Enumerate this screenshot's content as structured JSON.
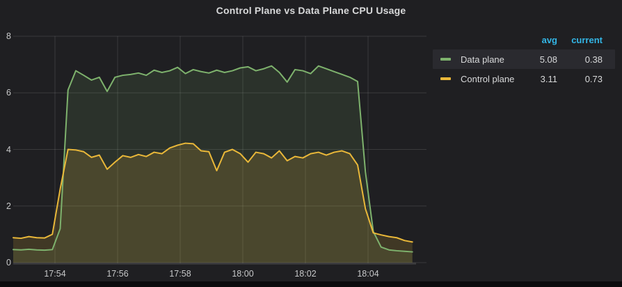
{
  "panel": {
    "title": "Control Plane vs Data Plane CPU Usage"
  },
  "chart_data": {
    "type": "area",
    "title": "Control Plane vs Data Plane CPU Usage",
    "xlabel": "",
    "ylabel": "",
    "ylim": [
      0,
      8
    ],
    "y_ticks": [
      "0",
      "2",
      "4",
      "6",
      "8"
    ],
    "x_ticks": [
      "17:54",
      "17:56",
      "17:58",
      "18:00",
      "18:02",
      "18:04"
    ],
    "x_start": "17:52:40",
    "x_end": "18:05:30",
    "interval_seconds": 15,
    "grid": true,
    "legend_position": "right-table",
    "series": [
      {
        "name": "Data plane",
        "color": "#7eb26d",
        "fill_opacity": 0.13,
        "avg": 5.08,
        "current": 0.38,
        "values": [
          0.46,
          0.45,
          0.47,
          0.45,
          0.44,
          0.46,
          1.2,
          6.1,
          6.78,
          6.62,
          6.45,
          6.55,
          6.05,
          6.55,
          6.62,
          6.65,
          6.7,
          6.62,
          6.8,
          6.72,
          6.78,
          6.9,
          6.68,
          6.82,
          6.75,
          6.7,
          6.8,
          6.72,
          6.78,
          6.88,
          6.92,
          6.78,
          6.85,
          6.95,
          6.72,
          6.38,
          6.82,
          6.78,
          6.68,
          6.95,
          6.85,
          6.75,
          6.65,
          6.55,
          6.4,
          3.2,
          1.1,
          0.55,
          0.45,
          0.42,
          0.4,
          0.38
        ]
      },
      {
        "name": "Control plane",
        "color": "#eab839",
        "fill_opacity": 0.16,
        "avg": 3.11,
        "current": 0.73,
        "values": [
          0.88,
          0.86,
          0.92,
          0.88,
          0.87,
          1.0,
          2.6,
          4.0,
          3.98,
          3.92,
          3.72,
          3.8,
          3.3,
          3.55,
          3.78,
          3.72,
          3.82,
          3.75,
          3.9,
          3.85,
          4.05,
          4.15,
          4.22,
          4.2,
          3.95,
          3.92,
          3.25,
          3.9,
          4.0,
          3.85,
          3.55,
          3.9,
          3.85,
          3.7,
          3.95,
          3.6,
          3.75,
          3.7,
          3.85,
          3.9,
          3.8,
          3.9,
          3.95,
          3.85,
          3.45,
          1.9,
          1.05,
          0.98,
          0.92,
          0.88,
          0.78,
          0.73
        ]
      }
    ]
  },
  "legend": {
    "columns": [
      "avg",
      "current"
    ],
    "rows": [
      {
        "label": "Data plane",
        "avg": "5.08",
        "current": "0.38",
        "highlighted": true
      },
      {
        "label": "Control plane",
        "avg": "3.11",
        "current": "0.73",
        "highlighted": false
      }
    ]
  },
  "colors": {
    "background": "#1f1f22",
    "bottom_strip": "#0b0b0d",
    "grid": "rgba(255,255,255,0.12)",
    "axis_text": "#c7c8c9",
    "title_text": "#d8d9da",
    "legend_header": "#33b5e5",
    "legend_text": "#d8d9da",
    "legend_highlight": "#2a2a2f"
  }
}
